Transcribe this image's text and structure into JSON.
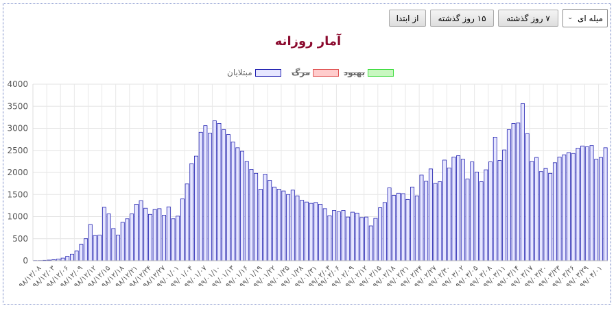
{
  "toolbar": {
    "start_label": "از ابتدا",
    "last15_label": "۱۵ روز گذشته",
    "last7_label": "۷ روز گذشته",
    "chart_type_value": "میله ای"
  },
  "legend": [
    {
      "label": "بهبود",
      "struck": true,
      "fill": "#c8f7c0",
      "stroke": "#3fdc3f"
    },
    {
      "label": "مرگ",
      "struck": true,
      "fill": "#ffcccc",
      "stroke": "#e05555"
    },
    {
      "label": "مبتلایان",
      "struck": false,
      "fill": "#e6e6ff",
      "stroke": "#1f1fb0"
    }
  ],
  "chart_data": {
    "type": "bar",
    "title": "آمار روزانه",
    "ylim": [
      0,
      4000
    ],
    "yticks": [
      "0",
      "500",
      "1000",
      "1500",
      "2000",
      "2500",
      "3000",
      "3500",
      "4000"
    ],
    "grid": true,
    "legend_position": "top-center",
    "bar_color": "#e6e6ff",
    "bar_stroke": "#1f1fb0",
    "x_tick_labels": [
      "۹۸/۱۲/۰۸",
      "۹۸/۱۲/۰۳",
      "۹۸/۱۲/۰۶",
      "۹۸/۱۲/۰۹",
      "۹۸/۱۲/۱۲",
      "۹۸/۱۲/۱۵",
      "۹۸/۱۲/۱۸",
      "۹۸/۱۲/۲۱",
      "۹۸/۱۲/۲۴",
      "۹۸/۱۲/۲۷",
      "۹۹/۰۱/۰۱",
      "۹۹/۰۱/۰۴",
      "۹۹/۰۱/۰۷",
      "۹۹/۰۱/۱۰",
      "۹۹/۰۱/۱۳",
      "۹۹/۰۱/۱۶",
      "۹۹/۰۱/۱۹",
      "۹۹/۰۱/۲۲",
      "۹۹/۰۱/۲۵",
      "۹۹/۰۱/۲۸",
      "۹۹/۰۱/۳۱",
      "۹۹/۰۲/۰۳",
      "۹۹/۰۲/۰۶",
      "۹۹/۰۲/۰۹",
      "۹۹/۰۲/۱۲",
      "۹۹/۰۲/۱۵",
      "۹۹/۰۲/۱۸",
      "۹۹/۰۲/۲۱",
      "۹۹/۰۲/۲۴",
      "۹۹/۰۲/۲۷",
      "۹۹/۰۲/۳۰",
      "۹۹/۰۳/۰۲",
      "۹۹/۰۳/۰۵",
      "۹۹/۰۳/۰۸",
      "۹۹/۰۳/۱۱",
      "۹۹/۰۳/۱۴",
      "۹۹/۰۳/۱۷",
      "۹۹/۰۳/۲۰",
      "۹۹/۰۳/۲۳",
      "۹۹/۰۳/۲۶",
      "۹۹/۰۳/۲۹",
      "۹۹/۰۴/۰۱"
    ],
    "values": [
      5,
      5,
      10,
      15,
      25,
      35,
      60,
      100,
      150,
      220,
      370,
      500,
      820,
      570,
      580,
      1210,
      1060,
      730,
      580,
      870,
      950,
      1060,
      1280,
      1360,
      1190,
      1050,
      1160,
      1180,
      1030,
      1220,
      950,
      1010,
      1400,
      1740,
      2200,
      2370,
      2910,
      3060,
      2890,
      3170,
      3110,
      2970,
      2860,
      2690,
      2560,
      2480,
      2250,
      2070,
      1980,
      1620,
      1960,
      1820,
      1670,
      1620,
      1580,
      1500,
      1600,
      1470,
      1370,
      1330,
      1300,
      1320,
      1280,
      1180,
      1020,
      1140,
      1110,
      1140,
      990,
      1100,
      1080,
      980,
      990,
      790,
      960,
      1200,
      1320,
      1650,
      1480,
      1530,
      1520,
      1390,
      1670,
      1470,
      1940,
      1800,
      2080,
      1750,
      1790,
      2280,
      2100,
      2350,
      2380,
      2300,
      1850,
      2240,
      2010,
      1790,
      2060,
      2240,
      2800,
      2270,
      2510,
      2970,
      3110,
      3120,
      3560,
      2880,
      2250,
      2340,
      2020,
      2090,
      1980,
      2220,
      2350,
      2400,
      2450,
      2430,
      2550,
      2600,
      2580,
      2610,
      2300,
      2340,
      2560
    ]
  }
}
